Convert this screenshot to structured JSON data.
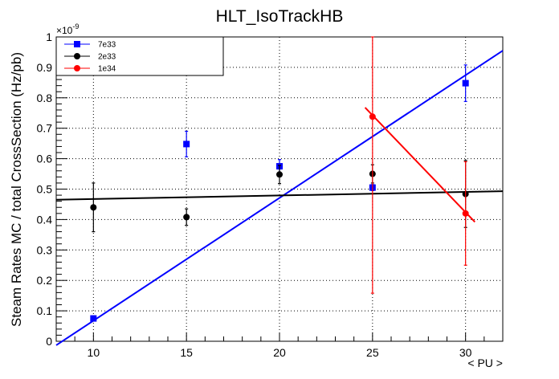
{
  "chart_data": {
    "type": "scatter",
    "title": "HLT_IsoTrackHB",
    "xlabel": "< PU >",
    "ylabel": "Steam Rates MC / total CrossSection (Hz/pb)",
    "y_multiplier": "×10",
    "y_exponent": "-9",
    "xlim": [
      8,
      32
    ],
    "ylim": [
      0,
      1
    ],
    "x_ticks": [
      10,
      15,
      20,
      25,
      30
    ],
    "y_ticks": [
      0,
      0.1,
      0.2,
      0.3,
      0.4,
      0.5,
      0.6,
      0.7,
      0.8,
      0.9,
      1
    ],
    "grid": true,
    "legend_position": "top-left",
    "series": [
      {
        "name": "7e33",
        "color": "#0000ff",
        "marker": "square",
        "points": [
          {
            "x": 10,
            "y": 0.075,
            "err": 0.008
          },
          {
            "x": 15,
            "y": 0.648,
            "err": 0.042
          },
          {
            "x": 20,
            "y": 0.575,
            "err": 0.022
          },
          {
            "x": 25,
            "y": 0.505,
            "err": 0.01
          },
          {
            "x": 30,
            "y": 0.848,
            "err": 0.06
          }
        ],
        "fit": {
          "x": [
            8,
            32
          ],
          "y": [
            -0.013,
            0.955
          ]
        }
      },
      {
        "name": "2e33",
        "color": "#000000",
        "marker": "circle",
        "points": [
          {
            "x": 10,
            "y": 0.44,
            "err": 0.08
          },
          {
            "x": 15,
            "y": 0.408,
            "err": 0.027
          },
          {
            "x": 20,
            "y": 0.548,
            "err": 0.03
          },
          {
            "x": 25,
            "y": 0.55,
            "err": 0.03
          },
          {
            "x": 30,
            "y": 0.484,
            "err": 0.11
          }
        ],
        "fit": {
          "x": [
            8,
            32
          ],
          "y": [
            0.465,
            0.493
          ]
        }
      },
      {
        "name": "1e34",
        "color": "#ff0000",
        "marker": "circle",
        "points": [
          {
            "x": 25,
            "y": 0.738,
            "err": 0.58
          },
          {
            "x": 30,
            "y": 0.42,
            "err": 0.17
          }
        ],
        "fit": {
          "x": [
            24.6,
            30.5
          ],
          "y": [
            0.768,
            0.392
          ]
        }
      }
    ]
  }
}
